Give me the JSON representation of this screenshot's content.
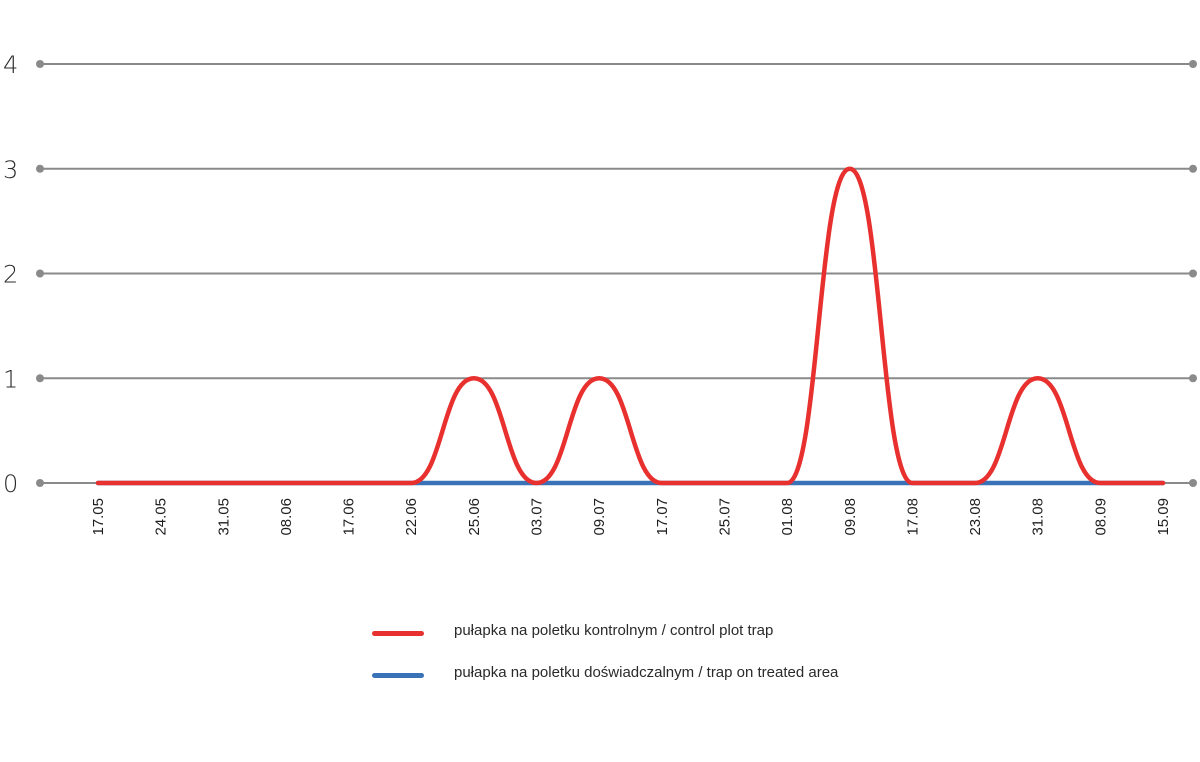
{
  "chart_data": {
    "type": "line",
    "categories": [
      "17.05",
      "24.05",
      "31.05",
      "08.06",
      "17.06",
      "22.06",
      "25.06",
      "03.07",
      "09.07",
      "17.07",
      "25.07",
      "01.08",
      "09.08",
      "17.08",
      "23.08",
      "31.08",
      "08.09",
      "15.09"
    ],
    "y_ticks": [
      "0",
      "1",
      "2",
      "3",
      "4"
    ],
    "ylim": [
      0,
      4
    ],
    "grid": true,
    "legend_position": "bottom",
    "series": [
      {
        "name": "pułapka na poletku kontrolnym / control plot trap",
        "color": "#e8312f",
        "values": [
          0,
          0,
          0,
          0,
          0,
          0,
          1,
          0,
          1,
          0,
          0,
          0,
          3,
          0,
          0,
          1,
          0,
          0
        ]
      },
      {
        "name": "pułapka na poletku doświadczalnym / trap on treated area",
        "color": "#3a72b8",
        "values": [
          0,
          0,
          0,
          0,
          0,
          0,
          0,
          0,
          0,
          0,
          0,
          0,
          0,
          0,
          0,
          0,
          0,
          0
        ]
      }
    ],
    "colors": {
      "grid": "#8a8a8a",
      "control": "#e8312f",
      "treated": "#3a72b8"
    }
  }
}
